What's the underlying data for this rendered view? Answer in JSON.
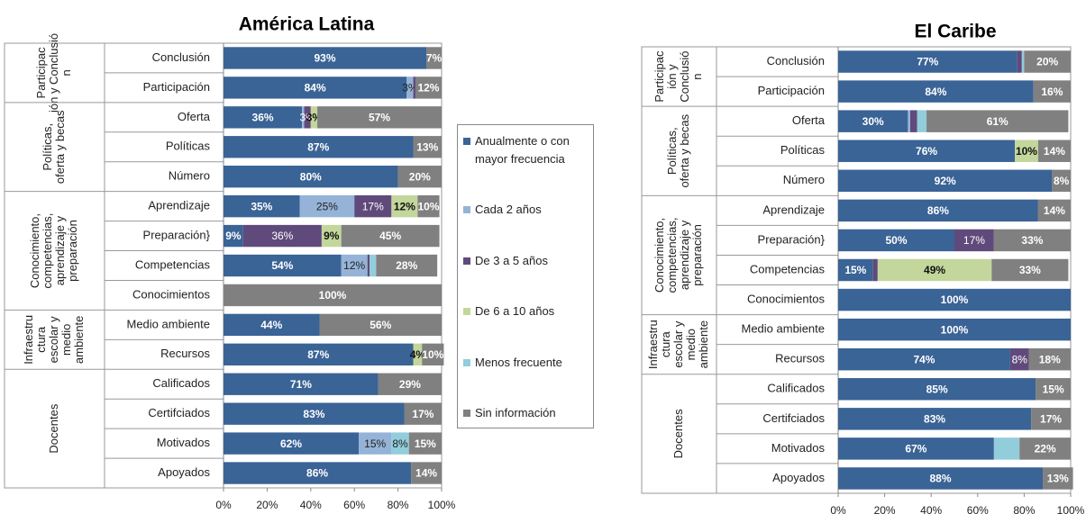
{
  "chart_data": [
    {
      "type": "bar",
      "title": "América Latina",
      "categories": [
        "Conclusión",
        "Participación",
        "Oferta",
        "Políticas",
        "Número",
        "Aprendizaje",
        "Preparación}",
        "Competencias",
        "Conocimientos",
        "Medio ambiente",
        "Recursos",
        "Calificados",
        "Certifciados",
        "Motivados",
        "Apoyados"
      ],
      "groups": [
        {
          "label": [
            "Participac",
            "ión y Conclusió",
            "n"
          ],
          "rows": 2
        },
        {
          "label": [
            "Políticas,",
            "oferta y becas"
          ],
          "rows": 3
        },
        {
          "label": [
            "Conocimiento,",
            "competencias,",
            "aprendizaje y",
            "preparación"
          ],
          "rows": 4
        },
        {
          "label": [
            "Infraestru",
            "ctura",
            "escolar y",
            "medio",
            "ambiente"
          ],
          "rows": 2
        },
        {
          "label": [
            "Docentes"
          ],
          "rows": 4
        }
      ],
      "series": [
        {
          "name": "Anualmente o con mayor frecuencia",
          "color": "#3a6396",
          "values": [
            93,
            84,
            36,
            87,
            80,
            35,
            9,
            54,
            0,
            44,
            87,
            71,
            83,
            62,
            86
          ],
          "value_labels": [
            "93%",
            "84%",
            "36%",
            "87%",
            "80%",
            "35%",
            "9%",
            "54%",
            null,
            "44%",
            "87%",
            "71%",
            "83%",
            "62%",
            "86%"
          ]
        },
        {
          "name": "Cada 2 años",
          "color": "#95b3d7",
          "values": [
            0,
            3,
            1,
            0,
            0,
            25,
            0,
            12,
            0,
            0,
            0,
            0,
            0,
            15,
            0
          ],
          "value_labels": [
            null,
            "3%",
            null,
            null,
            null,
            "25%",
            null,
            "12%",
            null,
            null,
            null,
            null,
            null,
            "15%",
            null
          ]
        },
        {
          "name": "De 3 a 5 años",
          "color": "#604a7b",
          "values": [
            0,
            1,
            3,
            0,
            0,
            17,
            36,
            1,
            0,
            0,
            0,
            0,
            0,
            0,
            0
          ],
          "value_labels": [
            null,
            null,
            "3%",
            null,
            null,
            "17%",
            "36%",
            null,
            null,
            null,
            null,
            null,
            null,
            null,
            null
          ]
        },
        {
          "name": "De 6 a 10 años",
          "color": "#c3d69b",
          "values": [
            0,
            0,
            3,
            0,
            0,
            12,
            9,
            0,
            0,
            0,
            4,
            0,
            0,
            0,
            0
          ],
          "value_labels": [
            null,
            null,
            "3%",
            null,
            null,
            "12%",
            "9%",
            null,
            null,
            null,
            "4%",
            null,
            null,
            null,
            null
          ]
        },
        {
          "name": "Menos frecuente",
          "color": "#92cddc",
          "values": [
            0,
            0,
            0,
            0,
            0,
            0,
            0,
            3,
            0,
            0,
            0,
            0,
            0,
            8,
            0
          ],
          "value_labels": [
            null,
            null,
            null,
            null,
            null,
            null,
            null,
            null,
            null,
            null,
            null,
            null,
            null,
            "8%",
            null
          ]
        },
        {
          "name": "Sin información",
          "color": "#808080",
          "values": [
            7,
            12,
            57,
            13,
            20,
            10,
            45,
            28,
            100,
            56,
            10,
            29,
            17,
            15,
            14
          ],
          "value_labels": [
            "7%",
            "12%",
            "57%",
            "13%",
            "20%",
            "10%",
            "45%",
            "28%",
            "100%",
            "56%",
            "10%",
            "29%",
            "17%",
            "15%",
            "14%"
          ]
        }
      ],
      "xlim": [
        0,
        100
      ],
      "xticks": [
        {
          "value": 0,
          "label": "0%"
        },
        {
          "value": 20,
          "label": "20%"
        },
        {
          "value": 40,
          "label": "40%"
        },
        {
          "value": 60,
          "label": "60%"
        },
        {
          "value": 80,
          "label": "80%"
        },
        {
          "value": 100,
          "label": "100%"
        }
      ]
    },
    {
      "type": "bar",
      "title": "El Caribe",
      "categories": [
        "Conclusión",
        "Participación",
        "Oferta",
        "Políticas",
        "Número",
        "Aprendizaje",
        "Preparación}",
        "Competencias",
        "Conocimientos",
        "Medio ambiente",
        "Recursos",
        "Calificados",
        "Certifciados",
        "Motivados",
        "Apoyados"
      ],
      "groups": [
        {
          "label": [
            "Participac",
            "ión y",
            "Conclusió",
            "n"
          ],
          "rows": 2
        },
        {
          "label": [
            "Políticas,",
            "oferta y becas"
          ],
          "rows": 3
        },
        {
          "label": [
            "Conocimiento,",
            "competencias,",
            "aprendizaje y",
            "preparación"
          ],
          "rows": 4
        },
        {
          "label": [
            "Infraestru",
            "ctura",
            "escolar y",
            "medio",
            "ambiente"
          ],
          "rows": 2
        },
        {
          "label": [
            "Docentes"
          ],
          "rows": 4
        }
      ],
      "series": [
        {
          "values": [
            77,
            84,
            30,
            76,
            92,
            86,
            50,
            15,
            100,
            100,
            74,
            85,
            83,
            67,
            88
          ],
          "value_labels": [
            "77%",
            "84%",
            "30%",
            "76%",
            "92%",
            "86%",
            "50%",
            "15%",
            "100%",
            "100%",
            "74%",
            "85%",
            "83%",
            "67%",
            "88%"
          ]
        },
        {
          "values": [
            0,
            0,
            1,
            0,
            0,
            0,
            0,
            0,
            0,
            0,
            0,
            0,
            0,
            0,
            0
          ],
          "value_labels": [
            null,
            null,
            null,
            null,
            null,
            null,
            null,
            null,
            null,
            null,
            null,
            null,
            null,
            null,
            null
          ]
        },
        {
          "values": [
            2,
            0,
            3,
            0,
            0,
            0,
            17,
            2,
            0,
            0,
            8,
            0,
            0,
            0,
            0
          ],
          "value_labels": [
            null,
            null,
            null,
            null,
            null,
            null,
            "17%",
            null,
            null,
            null,
            "8%",
            null,
            null,
            null,
            null
          ]
        },
        {
          "values": [
            0,
            0,
            0,
            10,
            0,
            0,
            0,
            49,
            0,
            0,
            0,
            0,
            0,
            0,
            0
          ],
          "value_labels": [
            null,
            null,
            null,
            "10%",
            null,
            null,
            null,
            "49%",
            null,
            null,
            null,
            null,
            null,
            null,
            null
          ]
        },
        {
          "values": [
            1,
            0,
            4,
            0,
            0,
            0,
            0,
            0,
            0,
            0,
            0,
            0,
            0,
            11,
            0
          ],
          "value_labels": [
            null,
            null,
            null,
            null,
            null,
            null,
            null,
            null,
            null,
            null,
            null,
            null,
            null,
            null,
            null
          ]
        },
        {
          "values": [
            20,
            16,
            61,
            14,
            8,
            14,
            33,
            33,
            0,
            0,
            18,
            15,
            17,
            22,
            13
          ],
          "value_labels": [
            "20%",
            "16%",
            "61%",
            "14%",
            "8%",
            "14%",
            "33%",
            "33%",
            null,
            null,
            "18%",
            "15%",
            "17%",
            "22%",
            "13%"
          ]
        }
      ],
      "xlim": [
        0,
        100
      ],
      "xticks": [
        {
          "value": 0,
          "label": "0%"
        },
        {
          "value": 20,
          "label": "20%"
        },
        {
          "value": 40,
          "label": "40%"
        },
        {
          "value": 60,
          "label": "60%"
        },
        {
          "value": 80,
          "label": "80%"
        },
        {
          "value": 100,
          "label": "100%"
        }
      ]
    }
  ]
}
